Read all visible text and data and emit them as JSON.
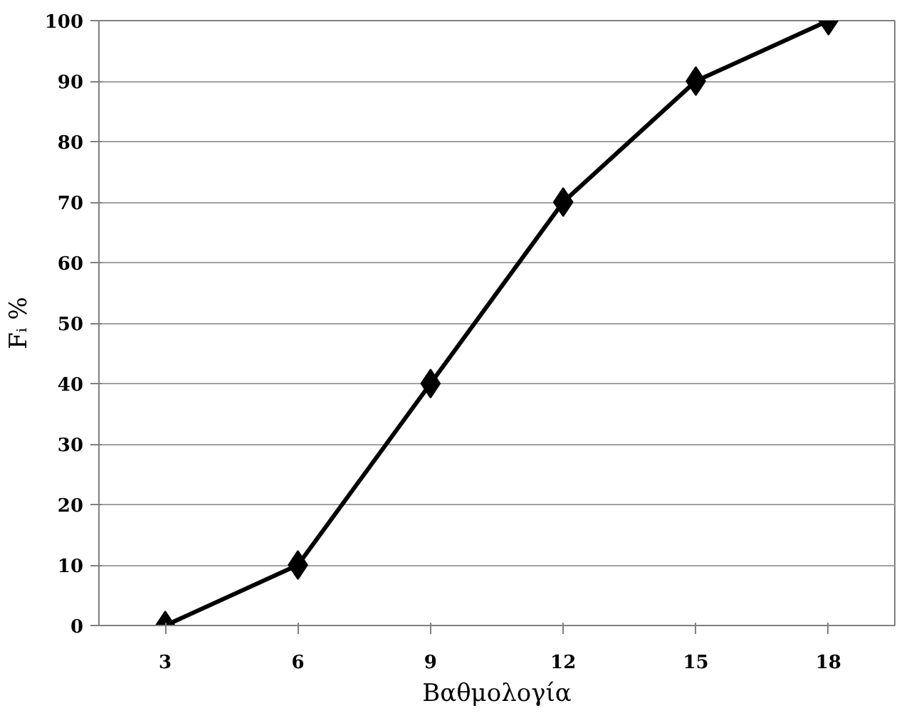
{
  "chart_data": {
    "type": "line",
    "categories": [
      "3",
      "6",
      "9",
      "12",
      "15",
      "18"
    ],
    "values": [
      0,
      10,
      40,
      70,
      90,
      100
    ],
    "color": "#000000",
    "marker": "diamond",
    "line_style": "solid",
    "xlabel": "Βαθμολογία",
    "ylabel": "Fᵢ %",
    "ylim": [
      0,
      100
    ],
    "yticks": [
      0,
      10,
      20,
      30,
      40,
      50,
      60,
      70,
      80,
      90,
      100
    ],
    "grid": "y"
  }
}
